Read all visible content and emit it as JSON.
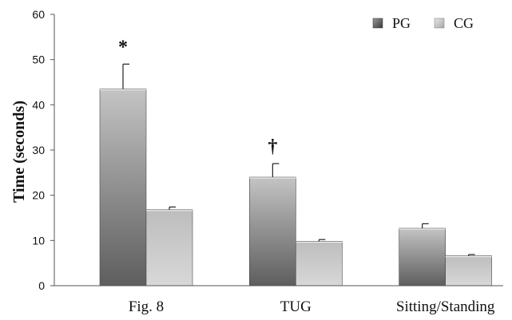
{
  "chart_data": {
    "type": "bar",
    "title": "",
    "xlabel": "",
    "ylabel": "Time (seconds)",
    "ylim": [
      0,
      60
    ],
    "yticks": [
      0,
      10,
      20,
      30,
      40,
      50,
      60
    ],
    "grid": false,
    "legend_position": "top-right",
    "categories": [
      "Fig. 8",
      "TUG",
      "Sitting/Standing"
    ],
    "series": [
      {
        "name": "PG",
        "values": [
          43.5,
          24,
          12.7
        ],
        "errors": [
          5.5,
          3,
          1
        ],
        "color": "#8c8c8c"
      },
      {
        "name": "CG",
        "values": [
          16.8,
          9.8,
          6.6
        ],
        "errors": [
          0.6,
          0.4,
          0.3
        ],
        "color": "#d4d4d4"
      }
    ],
    "annotations": [
      {
        "category": "Fig. 8",
        "series": "PG",
        "text": "*"
      },
      {
        "category": "TUG",
        "series": "PG",
        "text": "†"
      }
    ]
  }
}
